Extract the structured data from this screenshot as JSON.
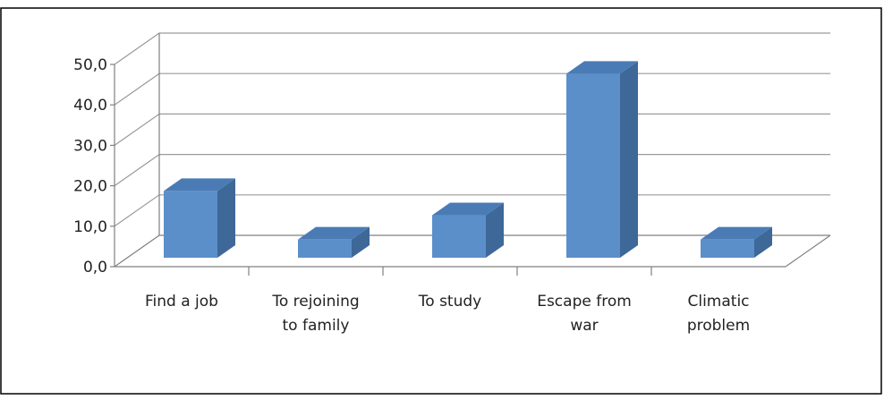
{
  "chart_data": {
    "type": "bar",
    "style": "3d-column",
    "title": "",
    "xlabel": "",
    "ylabel": "",
    "ylim": [
      0,
      50
    ],
    "y_tick_step": 10,
    "y_tick_labels": [
      "0,0",
      "10,0",
      "20,0",
      "30,0",
      "40,0",
      "50,0"
    ],
    "grid": true,
    "legend": "none",
    "categories": [
      [
        "Find a job"
      ],
      [
        "To rejoining",
        "to family"
      ],
      [
        "To study"
      ],
      [
        "Escape from",
        "war"
      ],
      [
        "Climatic",
        "problem"
      ]
    ],
    "values": [
      16.5,
      4.5,
      10.5,
      45.5,
      4.5
    ],
    "colors": {
      "bar_front": "#5b8fca",
      "bar_top": "#4a7bb5",
      "bar_side": "#3e6898",
      "axis": "#808080",
      "grid": "#9a9a9a",
      "frame": "#000000"
    }
  }
}
